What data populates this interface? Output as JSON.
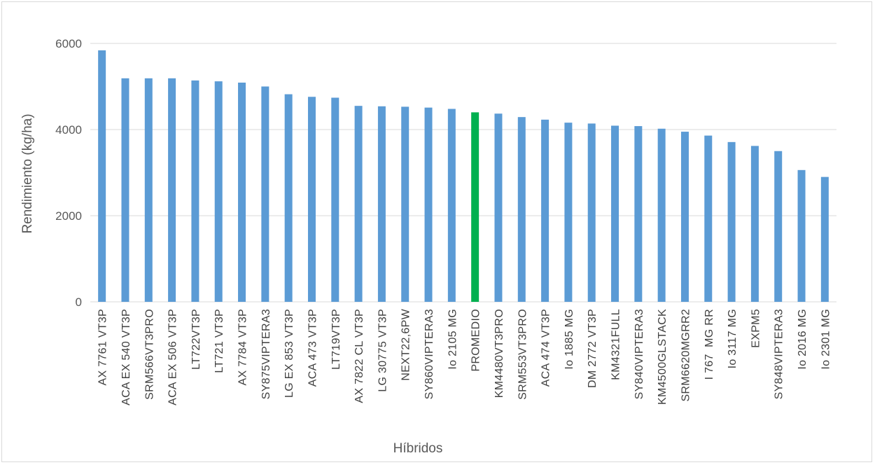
{
  "chart_data": {
    "type": "bar",
    "title": "",
    "xlabel": "Híbridos",
    "ylabel": "Rendimiento (kg/ha)",
    "ylim": [
      0,
      6000
    ],
    "yticks": [
      0,
      2000,
      4000,
      6000
    ],
    "grid": true,
    "legend": "none",
    "categories": [
      "AX 7761 VT3P",
      "ACA EX 540 VT3P",
      "SRM566VT3PRO",
      "ACA EX 506 VT3P",
      "LT722VT3P",
      "LT721 VT3P",
      "AX 7784 VT3P",
      "SY875VIPTERA3",
      "LG EX 853 VT3P",
      "ACA 473 VT3P",
      "LT719VT3P",
      "AX 7822 CL VT3P",
      "LG 30775 VT3P",
      "NEXT22,6PW",
      "SY860VIPTERA3",
      "Io 2105 MG",
      "PROMEDIO",
      "KM4480VT3PRO",
      "SRM553VT3PRO",
      "ACA 474 VT3P",
      "Io 1885 MG",
      "DM 2772 VT3P",
      "KM4321FULL",
      "SY840VIPTERA3",
      "KM4500GLSTACK",
      "SRM6620MGRR2",
      "I 767  MG RR",
      "Io 3117 MG",
      "EXPM5",
      "SY848VIPTERA3",
      "Io 2016 MG",
      "Io 2301 MG"
    ],
    "values": [
      5840,
      5190,
      5190,
      5190,
      5140,
      5120,
      5090,
      5000,
      4820,
      4760,
      4740,
      4550,
      4540,
      4530,
      4510,
      4480,
      4400,
      4370,
      4290,
      4230,
      4160,
      4140,
      4090,
      4080,
      4020,
      3950,
      3860,
      3710,
      3620,
      3500,
      3060,
      2900
    ],
    "highlight_index": 16,
    "colors": {
      "bar": "#5b9bd5",
      "highlight": "#00b050",
      "grid": "#d9d9d9",
      "text": "#595959"
    }
  }
}
